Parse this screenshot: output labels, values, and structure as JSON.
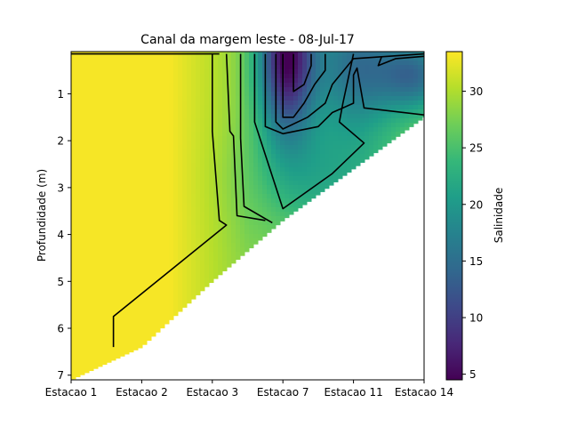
{
  "chart_data": {
    "type": "heatmap",
    "title": "Canal da margem leste - 08-Jul-17",
    "xlabel": "",
    "ylabel": "Profundidade (m)",
    "x_categories": [
      "Estacao 1",
      "Estacao 2",
      "Estacao 3",
      "Estacao 7",
      "Estacao 11",
      "Estacao 14"
    ],
    "y_ticks": [
      1,
      2,
      3,
      4,
      5,
      6,
      7
    ],
    "ylim": [
      7.1,
      0.1
    ],
    "y_inverted": true,
    "colorbar": {
      "label": "Salinidade",
      "ticks": [
        5,
        10,
        15,
        20,
        25,
        30
      ],
      "range": [
        4.5,
        33.5
      ],
      "colormap": "viridis"
    },
    "contour_levels": [
      10,
      15,
      20,
      25,
      30,
      32
    ],
    "bottom_depth_by_station": [
      7.1,
      6.4,
      5.0,
      3.7,
      2.6,
      1.5
    ],
    "salinity_samples": [
      {
        "station": "Estacao 1",
        "depth": 1.0,
        "value": 33
      },
      {
        "station": "Estacao 1",
        "depth": 6.0,
        "value": 31
      },
      {
        "station": "Estacao 2",
        "depth": 3.0,
        "value": 33
      },
      {
        "station": "Estacao 3",
        "depth": 0.5,
        "value": 28
      },
      {
        "station": "Estacao 3",
        "depth": 4.5,
        "value": 29
      },
      {
        "station": "Estacao 7",
        "depth": 0.5,
        "value": 5
      },
      {
        "station": "Estacao 7",
        "depth": 3.0,
        "value": 22
      },
      {
        "station": "Estacao 11",
        "depth": 0.5,
        "value": 12
      },
      {
        "station": "Estacao 11",
        "depth": 2.0,
        "value": 25
      },
      {
        "station": "Estacao 14",
        "depth": 0.6,
        "value": 18
      },
      {
        "station": "Estacao 14",
        "depth": 1.4,
        "value": 24
      }
    ],
    "grid": false,
    "legend": "colorbar-right"
  },
  "colors": {
    "viridis": [
      "#440154",
      "#482878",
      "#3e4989",
      "#31688e",
      "#26828e",
      "#1f9e89",
      "#35b779",
      "#6ece58",
      "#b5de2b",
      "#fde725"
    ],
    "contour": "#000000"
  }
}
